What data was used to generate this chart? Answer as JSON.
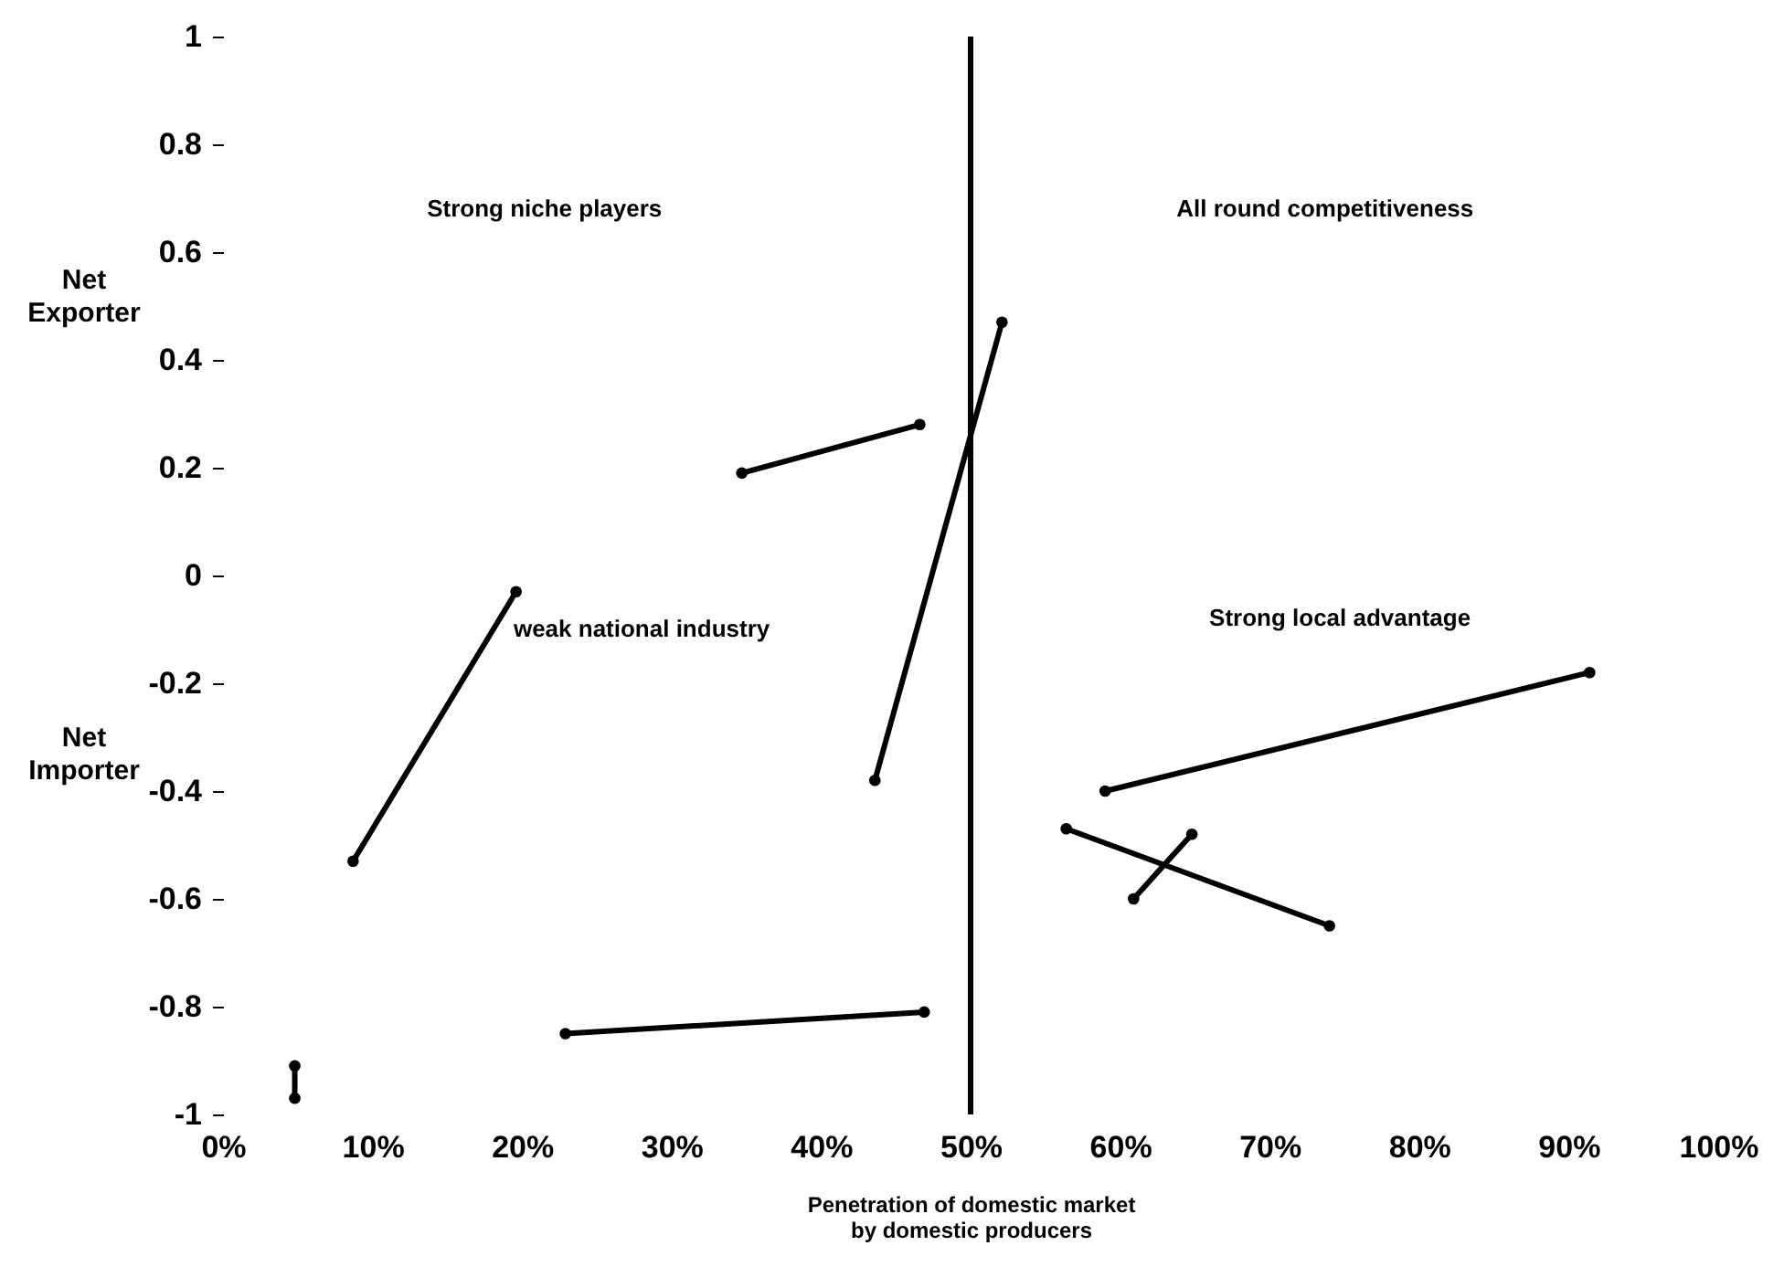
{
  "chart_data": {
    "type": "line",
    "xlabel": "Penetration of domestic market\nby domestic producers",
    "marker": "circle",
    "xlim": [
      0,
      100
    ],
    "ylim": [
      -1,
      1
    ],
    "xticks": [
      {
        "value": 0,
        "label": "0%"
      },
      {
        "value": 10,
        "label": "10%"
      },
      {
        "value": 20,
        "label": "20%"
      },
      {
        "value": 30,
        "label": "30%"
      },
      {
        "value": 40,
        "label": "40%"
      },
      {
        "value": 50,
        "label": "50%"
      },
      {
        "value": 60,
        "label": "60%"
      },
      {
        "value": 70,
        "label": "70%"
      },
      {
        "value": 80,
        "label": "80%"
      },
      {
        "value": 90,
        "label": "90%"
      },
      {
        "value": 100,
        "label": "100%"
      }
    ],
    "yticks": [
      1,
      0.8,
      0.6,
      0.4,
      0.2,
      0,
      -0.2,
      -0.4,
      -0.6,
      -0.8,
      -1
    ],
    "series": [
      {
        "color": "#000000",
        "x": [
          8.7,
          19.6
        ],
        "values": [
          -0.53,
          -0.03
        ]
      },
      {
        "color": "#000000",
        "x": [
          43.6,
          52.1
        ],
        "values": [
          -0.38,
          0.47
        ]
      },
      {
        "color": "#000000",
        "x": [
          34.7,
          46.6
        ],
        "values": [
          0.19,
          0.28
        ]
      },
      {
        "color": "#000000",
        "x": [
          22.9,
          46.9
        ],
        "values": [
          -0.85,
          -0.81
        ]
      },
      {
        "color": "#000000",
        "x": [
          4.8,
          4.8
        ],
        "values": [
          -0.91,
          -0.97
        ]
      },
      {
        "color": "#000000",
        "x": [
          59.0,
          91.4
        ],
        "values": [
          -0.4,
          -0.18
        ]
      },
      {
        "color": "#000000",
        "x": [
          56.4,
          74.0
        ],
        "values": [
          -0.47,
          -0.65
        ]
      },
      {
        "color": "#000000",
        "x": [
          60.9,
          64.8
        ],
        "values": [
          -0.6,
          -0.48
        ]
      }
    ],
    "ref_lines": [
      {
        "axis": "x",
        "value": 50,
        "color": "#000000"
      }
    ],
    "annotations": [
      "Strong niche players",
      "All round competitiveness",
      "weak national industry",
      "Strong local advantage",
      "Net Exporter",
      "Net Importer"
    ]
  }
}
